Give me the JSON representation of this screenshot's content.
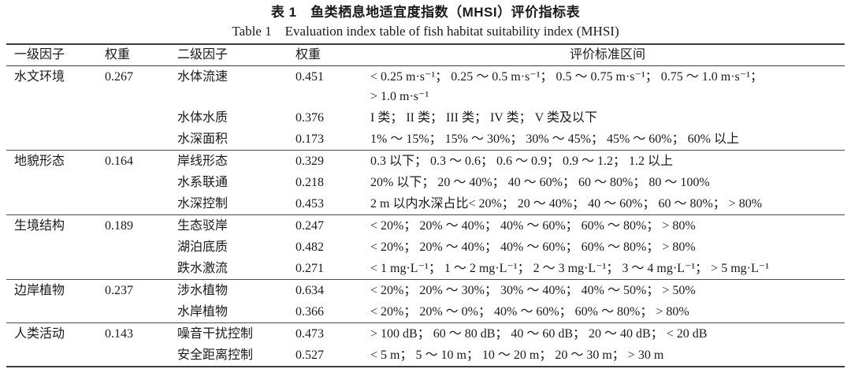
{
  "caption": {
    "zh": "表 1　鱼类栖息地适宜度指数（MHSI）评价指标表",
    "en": "Table 1　Evaluation index table of fish habitat suitability index (MHSI)"
  },
  "table": {
    "header": {
      "level1_factor": "一级因子",
      "weight1": "权重",
      "level2_factor": "二级因子",
      "weight2": "权重",
      "criteria": "评价标准区间"
    },
    "groups": [
      {
        "factor": "水文环境",
        "weight": "0.267",
        "rows": [
          {
            "sub": "水体流速",
            "weight": "0.451",
            "criteria": "< 0.25 m·s⁻¹； 0.25 ～ 0.5 m·s⁻¹； 0.5 ～ 0.75 m·s⁻¹； 0.75 ～ 1.0 m·s⁻¹；\n> 1.0 m·s⁻¹"
          },
          {
            "sub": "水体水质",
            "weight": "0.376",
            "criteria": "I 类； II 类； III 类； IV 类； V 类及以下"
          },
          {
            "sub": "水深面积",
            "weight": "0.173",
            "criteria": "1% ～ 15%； 15% ～ 30%； 30% ～ 45%； 45% ～ 60%； 60% 以上"
          }
        ]
      },
      {
        "factor": "地貌形态",
        "weight": "0.164",
        "rows": [
          {
            "sub": "岸线形态",
            "weight": "0.329",
            "criteria": "0.3 以下； 0.3 ～ 0.6； 0.6 ～ 0.9； 0.9 ～ 1.2； 1.2 以上"
          },
          {
            "sub": "水系联通",
            "weight": "0.218",
            "criteria": "20% 以下； 20 ～ 40%； 40 ～ 60%； 60 ～ 80%； 80 ～ 100%"
          },
          {
            "sub": "水深控制",
            "weight": "0.453",
            "criteria": "2 m 以内水深占比< 20%； 20 ～ 40%； 40 ～ 60%； 60 ～ 80%； > 80%"
          }
        ]
      },
      {
        "factor": "生境结构",
        "weight": "0.189",
        "rows": [
          {
            "sub": "生态驳岸",
            "weight": "0.247",
            "criteria": "< 20%； 20% ～ 40%； 40% ～ 60%； 60% ～ 80%； > 80%"
          },
          {
            "sub": "湖泊底质",
            "weight": "0.482",
            "criteria": "< 20%； 20% ～ 40%； 40% ～ 60%； 60% ～ 80%； > 80%"
          },
          {
            "sub": "跌水激流",
            "weight": "0.271",
            "criteria": "< 1 mg·L⁻¹； 1 ～ 2 mg·L⁻¹； 2 ～ 3 mg·L⁻¹； 3 ～ 4 mg·L⁻¹； > 5 mg·L⁻¹"
          }
        ]
      },
      {
        "factor": "边岸植物",
        "weight": "0.237",
        "rows": [
          {
            "sub": "涉水植物",
            "weight": "0.634",
            "criteria": "< 20%； 20% ～ 30%； 30% ～ 40%； 40% ～ 50%； > 50%"
          },
          {
            "sub": "水岸植物",
            "weight": "0.366",
            "criteria": "< 20%； 20% ～ 0%； 40% ～ 60%； 60% ～ 80%； > 80%"
          }
        ]
      },
      {
        "factor": "人类活动",
        "weight": "0.143",
        "rows": [
          {
            "sub": "噪音干扰控制",
            "weight": "0.473",
            "criteria": "> 100 dB； 60 ～ 80 dB； 40 ～ 60 dB； 20 ～ 40 dB； < 20 dB"
          },
          {
            "sub": "安全距离控制",
            "weight": "0.527",
            "criteria": "< 5 m； 5 ～ 10 m； 10 ～ 20 m； 20 ～ 30 m； > 30 m"
          }
        ]
      }
    ]
  }
}
